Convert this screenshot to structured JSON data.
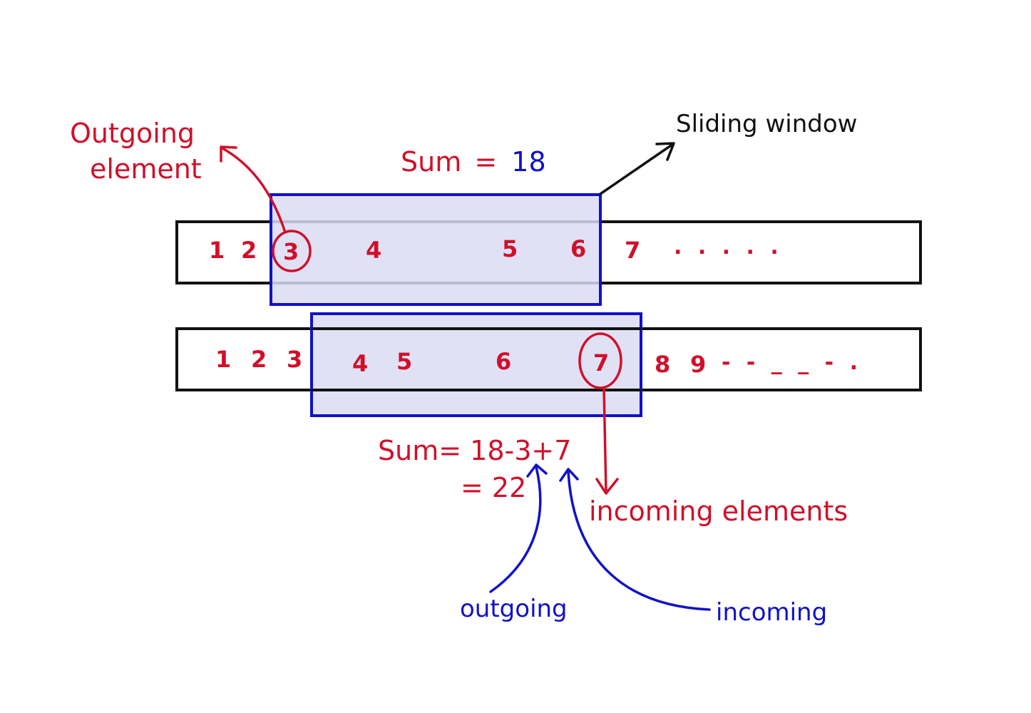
{
  "colors": {
    "red": "#d0102a",
    "blue": "#1111c8",
    "black": "#111111",
    "window_fill": "#dcdcf3"
  },
  "top": {
    "sum_label": "Sum",
    "sum_equals": "=",
    "sum_value": "18",
    "outgoing_label_line1": "Outgoing",
    "outgoing_label_line2": "element",
    "sliding_window_label": "Sliding window",
    "array": [
      "1",
      "2",
      "3",
      "4",
      "5",
      "6",
      "7"
    ],
    "ellipsis": ". . . . ."
  },
  "bottom": {
    "array": [
      "1",
      "2",
      "3",
      "4",
      "5",
      "6",
      "7",
      "8",
      "9"
    ],
    "ellipsis": "- - _ _ - .",
    "sum_expression": "Sum= 18-3+7",
    "sum_result": "= 22",
    "incoming_elements_label": "incoming elements",
    "outgoing_label": "outgoing",
    "incoming_label": "incoming"
  }
}
